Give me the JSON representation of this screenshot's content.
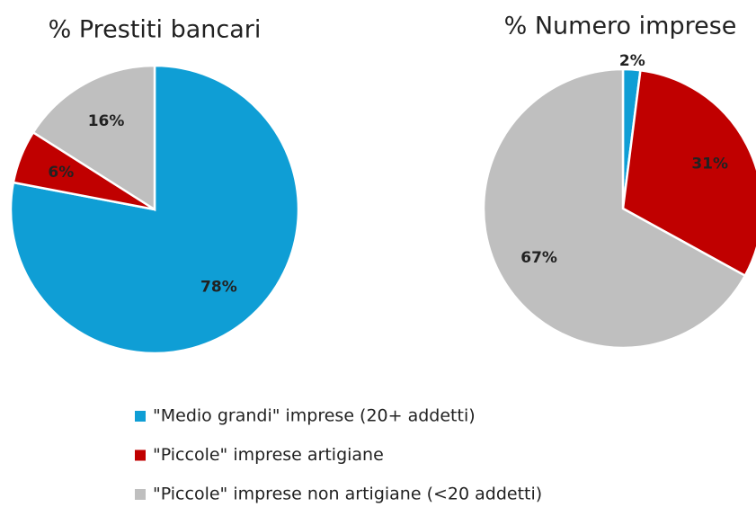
{
  "chart_data": [
    {
      "type": "pie",
      "title": "% Prestiti bancari",
      "values": [
        78,
        6,
        16
      ],
      "value_labels": [
        "78%",
        "6%",
        "16%"
      ],
      "colors": [
        "#0f9ed5",
        "#c00000",
        "#bfbfbf"
      ]
    },
    {
      "type": "pie",
      "title": "% Numero imprese",
      "values": [
        2,
        31,
        67
      ],
      "value_labels": [
        "2%",
        "31%",
        "67%"
      ],
      "colors": [
        "#0f9ed5",
        "#c00000",
        "#bfbfbf"
      ]
    }
  ],
  "legend": {
    "labels": [
      "\"Medio grandi\" imprese (20+ addetti)",
      "\"Piccole\" imprese artigiane",
      "\"Piccole\" imprese non artigiane (<20 addetti)"
    ],
    "colors": [
      "#0f9ed5",
      "#c00000",
      "#bfbfbf"
    ]
  }
}
